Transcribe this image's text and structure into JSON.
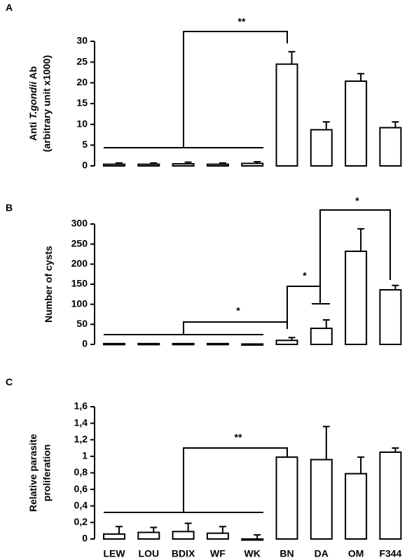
{
  "chart_data": [
    {
      "type": "bar",
      "label": "A",
      "ylabel": {
        "line1": [
          "Anti ",
          "T.gondii",
          " Ab"
        ],
        "line2": "(arbitrary unit x1000)"
      },
      "values": [
        0.4,
        0.4,
        0.5,
        0.4,
        0.6,
        24.5,
        8.7,
        20.4,
        9.2
      ],
      "errors": [
        0.3,
        0.3,
        0.4,
        0.3,
        0.4,
        3,
        1.9,
        1.8,
        1.4
      ],
      "ylim": [
        0,
        30
      ],
      "yticks": [
        0,
        5,
        10,
        15,
        20,
        25,
        30
      ],
      "annotations": [
        "**"
      ]
    },
    {
      "type": "bar",
      "label": "B",
      "ylabel": {
        "line1": [
          "Number of cysts"
        ]
      },
      "values": [
        2,
        2,
        2,
        2,
        1,
        10,
        40,
        232,
        136
      ],
      "errors": [
        null,
        null,
        null,
        null,
        null,
        7,
        21,
        56,
        11
      ],
      "ylim": [
        0,
        300
      ],
      "yticks": [
        0,
        50,
        100,
        150,
        200,
        250,
        300
      ],
      "annotations": [
        "*",
        "*",
        "*"
      ]
    },
    {
      "type": "bar",
      "label": "C",
      "ylabel": {
        "line1": [
          "Relative parasite"
        ],
        "line2": "proliferation"
      },
      "categories": [
        "LEW",
        "LOU",
        "BDIX",
        "WF",
        "WK",
        "BN",
        "DA",
        "OM",
        "F344"
      ],
      "values": [
        0.06,
        0.08,
        0.09,
        0.07,
        0,
        0.99,
        0.96,
        0.79,
        1.05
      ],
      "errors": [
        0.09,
        0.06,
        0.1,
        0.08,
        0.05,
        null,
        0.4,
        0.2,
        0.05
      ],
      "ylim": [
        0,
        1.6
      ],
      "yticks": [
        0,
        {
          "value": 0.2,
          "label": "0,2"
        },
        {
          "value": 0.4,
          "label": "0,4"
        },
        {
          "value": 0.6,
          "label": "0,6"
        },
        {
          "value": 0.8,
          "label": "0,8"
        },
        1,
        {
          "value": 1.2,
          "label": "1,2"
        },
        {
          "value": 1.4,
          "label": "1,4"
        },
        {
          "value": 1.6,
          "label": "1,6"
        }
      ],
      "annotations": [
        "**"
      ]
    }
  ]
}
